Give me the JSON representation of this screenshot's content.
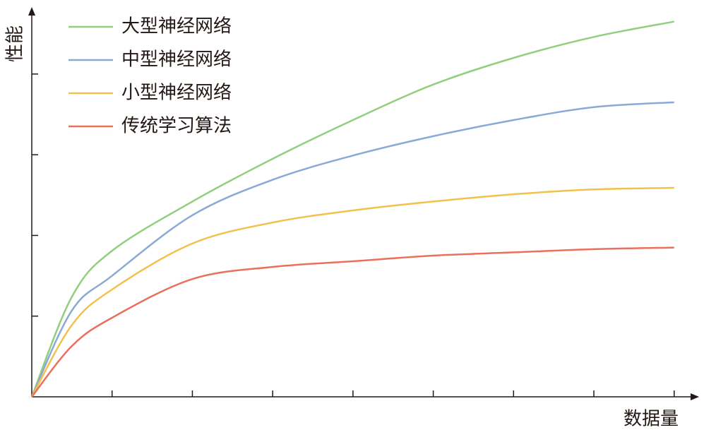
{
  "chart_data": {
    "type": "line",
    "x_label": "数据量",
    "y_label": "性能",
    "x": [
      0,
      0.5,
      1,
      2,
      3,
      4,
      5,
      6,
      7,
      8
    ],
    "series": [
      {
        "name": "大型神经网络",
        "color": "#92cf7c",
        "values": [
          0,
          1.24,
          1.81,
          2.42,
          2.95,
          3.43,
          3.87,
          4.2,
          4.46,
          4.65
        ]
      },
      {
        "name": "中型神经网络",
        "color": "#8aaad5",
        "values": [
          0,
          1.07,
          1.5,
          2.25,
          2.69,
          2.99,
          3.23,
          3.43,
          3.59,
          3.65
        ]
      },
      {
        "name": "小型神经网络",
        "color": "#f2c14c",
        "values": [
          0,
          0.89,
          1.33,
          1.9,
          2.16,
          2.31,
          2.42,
          2.51,
          2.57,
          2.59
        ]
      },
      {
        "name": "传统学习算法",
        "color": "#e9705a",
        "values": [
          0,
          0.63,
          0.98,
          1.46,
          1.61,
          1.68,
          1.75,
          1.79,
          1.83,
          1.85
        ]
      }
    ],
    "xlim": [
      0,
      8.31
    ],
    "ylim": [
      0,
      4.83
    ],
    "xticks": [
      1,
      2,
      3,
      4,
      5,
      6,
      7,
      8
    ],
    "yticks": [
      1,
      2,
      3,
      4
    ],
    "legend": "upper left"
  }
}
